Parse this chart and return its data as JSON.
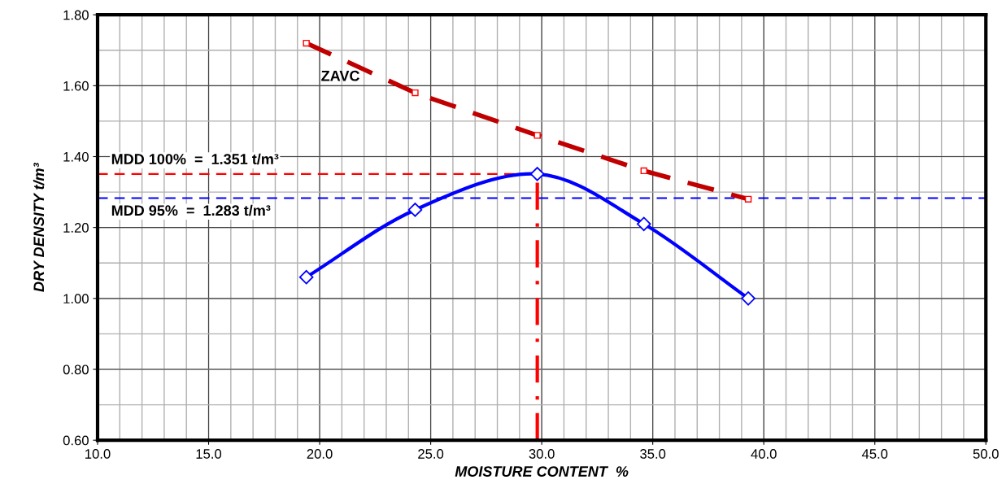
{
  "chart_data": {
    "type": "line",
    "xlabel": "MOISTURE CONTENT  %",
    "ylabel": "DRY DENSITY t/m³",
    "xlim": [
      10,
      50
    ],
    "ylim": [
      0.6,
      1.8
    ],
    "xticks": [
      {
        "value": 10,
        "label": "10.0"
      },
      {
        "value": 15,
        "label": "15.0"
      },
      {
        "value": 20,
        "label": "20.0"
      },
      {
        "value": 25,
        "label": "25.0"
      },
      {
        "value": 30,
        "label": "30.0"
      },
      {
        "value": 35,
        "label": "35.0"
      },
      {
        "value": 40,
        "label": "40.0"
      },
      {
        "value": 45,
        "label": "45.0"
      },
      {
        "value": 50,
        "label": "50.0"
      }
    ],
    "yticks": [
      {
        "value": 0.6,
        "label": "0.60"
      },
      {
        "value": 0.8,
        "label": "0.80"
      },
      {
        "value": 1.0,
        "label": "1.00"
      },
      {
        "value": 1.2,
        "label": "1.20"
      },
      {
        "value": 1.4,
        "label": "1.40"
      },
      {
        "value": 1.6,
        "label": "1.60"
      },
      {
        "value": 1.8,
        "label": "1.80"
      }
    ],
    "grid": true,
    "series": [
      {
        "color": "#0000ff",
        "marker": "diamond",
        "line_style": "solid",
        "x": [
          19.4,
          24.3,
          29.8,
          34.6,
          39.3
        ],
        "values": [
          1.06,
          1.25,
          1.351,
          1.21,
          1.0
        ]
      },
      {
        "name": "ZAVC",
        "color": "#c00000",
        "marker": "square",
        "line_style": "dashed",
        "x": [
          19.4,
          24.3,
          29.8,
          34.6,
          39.3
        ],
        "values": [
          1.72,
          1.58,
          1.46,
          1.36,
          1.28
        ]
      }
    ],
    "ref_lines": [
      {
        "axis": "y",
        "value": 1.351,
        "label": "MDD 100%  =  1.351 t/m³",
        "color": "#ff0000",
        "line_style": "dashed"
      },
      {
        "axis": "y",
        "value": 1.283,
        "label": "MDD 95%  =  1.283 t/m³",
        "color": "#0000ff",
        "line_style": "dashed"
      },
      {
        "axis": "x",
        "value": 29.8,
        "color": "#ff0000",
        "line_style": "dashdot"
      }
    ]
  }
}
